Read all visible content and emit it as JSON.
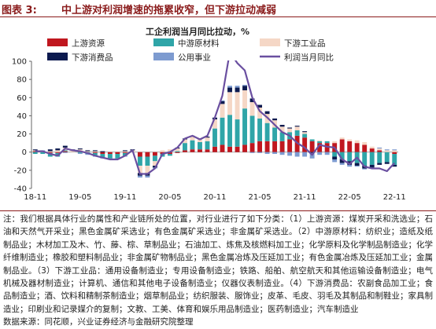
{
  "figure": {
    "label": "图表 3:",
    "title": "中上游对利润增速的拖累收窄，但下游拉动减弱"
  },
  "chart_data": {
    "type": "bar",
    "title": "工企利润当月同比拉动，%",
    "x_tick_labels": [
      "18-11",
      "19-05",
      "19-11",
      "20-05",
      "20-11",
      "21-05",
      "21-11",
      "22-05",
      "22-11"
    ],
    "ylim": [
      -40,
      100
    ],
    "y_ticks": [
      -40,
      -20,
      0,
      20,
      40,
      60,
      80,
      100
    ],
    "legend_placement": "top",
    "grid": false,
    "periods": [
      "18-11",
      "18-12",
      "19-01",
      "19-02",
      "19-03",
      "19-04",
      "19-05",
      "19-06",
      "19-07",
      "19-08",
      "19-09",
      "19-10",
      "19-11",
      "19-12",
      "20-01",
      "20-02",
      "20-03",
      "20-04",
      "20-05",
      "20-06",
      "20-07",
      "20-08",
      "20-09",
      "20-10",
      "20-11",
      "20-12",
      "21-01",
      "21-02",
      "21-03",
      "21-04",
      "21-05",
      "21-06",
      "21-07",
      "21-08",
      "21-09",
      "21-10",
      "21-11",
      "21-12",
      "22-01",
      "22-02",
      "22-03",
      "22-04",
      "22-05",
      "22-06",
      "22-07",
      "22-08",
      "22-09",
      "22-10",
      "22-11"
    ],
    "series": [
      {
        "name": "上游资源",
        "kind": "bar",
        "color": "#c0171f",
        "values": [
          1,
          0,
          -1,
          -1,
          1,
          0,
          1,
          0,
          -1,
          -2,
          -2,
          -2,
          -1,
          0,
          -5,
          -5,
          -4,
          -2,
          -2,
          -1,
          2,
          3,
          3,
          3,
          6,
          8,
          6,
          6,
          8,
          10,
          12,
          12,
          12,
          12,
          14,
          18,
          16,
          12,
          10,
          10,
          10,
          14,
          12,
          10,
          8,
          4,
          2,
          0,
          -2
        ]
      },
      {
        "name": "中游原材料",
        "kind": "bar",
        "color": "#2fa5a8",
        "values": [
          -2,
          -2,
          -4,
          -4,
          1,
          0,
          -1,
          -2,
          -3,
          -4,
          -5,
          -5,
          -3,
          0,
          -10,
          -10,
          -6,
          -3,
          -2,
          1,
          8,
          10,
          8,
          9,
          20,
          30,
          35,
          30,
          40,
          30,
          25,
          20,
          15,
          10,
          8,
          6,
          4,
          2,
          2,
          2,
          -5,
          -8,
          -10,
          -12,
          -15,
          -14,
          -12,
          -11,
          -12
        ]
      },
      {
        "name": "下游工业品",
        "kind": "bar",
        "color": "#f5d7c6",
        "values": [
          1,
          1,
          1,
          2,
          3,
          2,
          2,
          1,
          1,
          0,
          0,
          0,
          1,
          2,
          -8,
          -8,
          -5,
          2,
          3,
          3,
          4,
          4,
          3,
          4,
          10,
          15,
          25,
          30,
          20,
          15,
          12,
          10,
          8,
          6,
          4,
          4,
          2,
          0,
          1,
          0,
          2,
          2,
          2,
          3,
          3,
          2,
          2,
          2,
          2
        ]
      },
      {
        "name": "下游消费品",
        "kind": "bar",
        "color": "#0c1a4f",
        "values": [
          1,
          0,
          2,
          2,
          2,
          1,
          1,
          1,
          1,
          1,
          0,
          0,
          1,
          1,
          -3,
          -3,
          -2,
          0,
          0,
          1,
          1,
          1,
          1,
          1,
          2,
          3,
          5,
          5,
          5,
          4,
          3,
          3,
          2,
          2,
          1,
          1,
          1,
          -1,
          0,
          0,
          -3,
          -4,
          -4,
          -3,
          -3,
          -3,
          -2,
          -2,
          -2
        ]
      },
      {
        "name": "公用事业",
        "kind": "bar",
        "color": "#7d9bd0",
        "values": [
          0,
          1,
          0,
          0,
          -1,
          0,
          -1,
          -1,
          -1,
          -1,
          -1,
          -1,
          -1,
          0,
          -2,
          -2,
          -1,
          0,
          0,
          0,
          0,
          0,
          0,
          0,
          0,
          1,
          2,
          2,
          1,
          -1,
          -1,
          -2,
          -2,
          -3,
          -4,
          -5,
          -5,
          -6,
          -3,
          -3,
          -3,
          -2,
          -2,
          -1,
          -1,
          0,
          1,
          1,
          1
        ]
      },
      {
        "name": "利润当月同比",
        "kind": "line",
        "color": "#6a4fa0",
        "values": [
          1,
          1,
          -2,
          -4,
          4,
          2,
          1,
          -1,
          -4,
          -6,
          -8,
          -8,
          -4,
          2,
          -24,
          -24,
          -18,
          -2,
          0,
          5,
          15,
          18,
          14,
          18,
          38,
          62,
          110,
          98,
          90,
          60,
          45,
          38,
          30,
          22,
          18,
          10,
          5,
          -3,
          8,
          6,
          5,
          -8,
          -13,
          -6,
          -16,
          -18,
          -18,
          -21,
          -12
        ]
      }
    ]
  },
  "notes": {
    "text": "注：我们根据具体行业的属性和产业链所处的位置，对行业进行了如下分类：（1）上游资源：煤炭开采和洗选业；石油和天然气开采业；黑色金属矿采选业；有色金属矿采选业；非金属矿采选业。（2）中游原材料：纺织业；造纸及纸制品业；木材加工及木、竹、藤、棕、草制品业；石油加工、炼焦及核燃料加工业；化学原料及化学制品制造业；化学纤维制造业；橡胶和塑料制品业；非金属矿物制品业；黑色金属冶炼及压延加工业；有色金属冶炼及压延加工业；金属制品业。（3）下游工业品：通用设备制造业；专用设备制造业；铁路、船舶、航空航天和其他运输设备制造业；电气机械及器材制造业；计算机、通信和其他电子设备制造业；仪器仪表制造业。（4）下游消费品：农副食品加工业；食品制造业；酒、饮料和精制茶制造业；烟草制品业；纺织服装、服饰业；皮革、毛皮、羽毛及其制品和制鞋业；家具制造业；印刷业和记录媒介的复制；文教、工美、体育和娱乐用品制造业；医药制造业；汽车制造业",
    "source": "数据来源：同花顺，兴业证券经济与金融研究院整理"
  }
}
